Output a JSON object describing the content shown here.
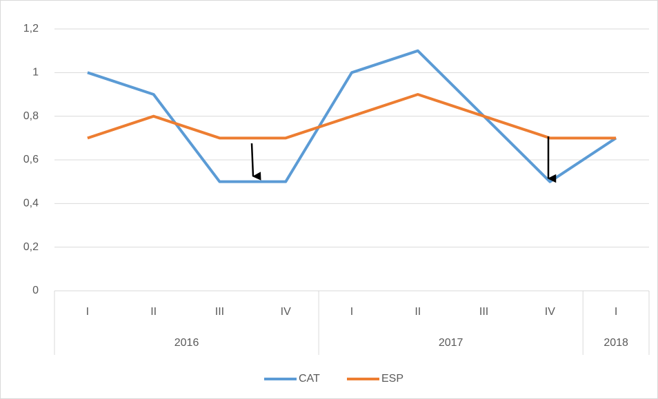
{
  "chart_data": {
    "type": "line",
    "groups": [
      {
        "label": "2016",
        "categories": [
          "I",
          "II",
          "III",
          "IV"
        ]
      },
      {
        "label": "2017",
        "categories": [
          "I",
          "II",
          "III",
          "IV"
        ]
      },
      {
        "label": "2018",
        "categories": [
          "I"
        ]
      }
    ],
    "series": [
      {
        "name": "CAT",
        "color": "#5b9bd5",
        "values": [
          1,
          0.9,
          0.5,
          0.5,
          1,
          1.1,
          0.8,
          0.5,
          0.7
        ]
      },
      {
        "name": "ESP",
        "color": "#ed7d31",
        "values": [
          0.7,
          0.8,
          0.7,
          0.7,
          0.8,
          0.9,
          0.8,
          0.7,
          0.7
        ]
      }
    ],
    "ylim": [
      0,
      1.2
    ],
    "yticks": [
      0,
      {
        "value": 0.2,
        "label": "0,2"
      },
      {
        "value": 0.4,
        "label": "0,4"
      },
      {
        "value": 0.6,
        "label": "0,6"
      },
      {
        "value": 0.8,
        "label": "0,8"
      },
      1,
      {
        "value": 1.2,
        "label": "1,2"
      }
    ],
    "grid": true,
    "legend": "bottom"
  }
}
